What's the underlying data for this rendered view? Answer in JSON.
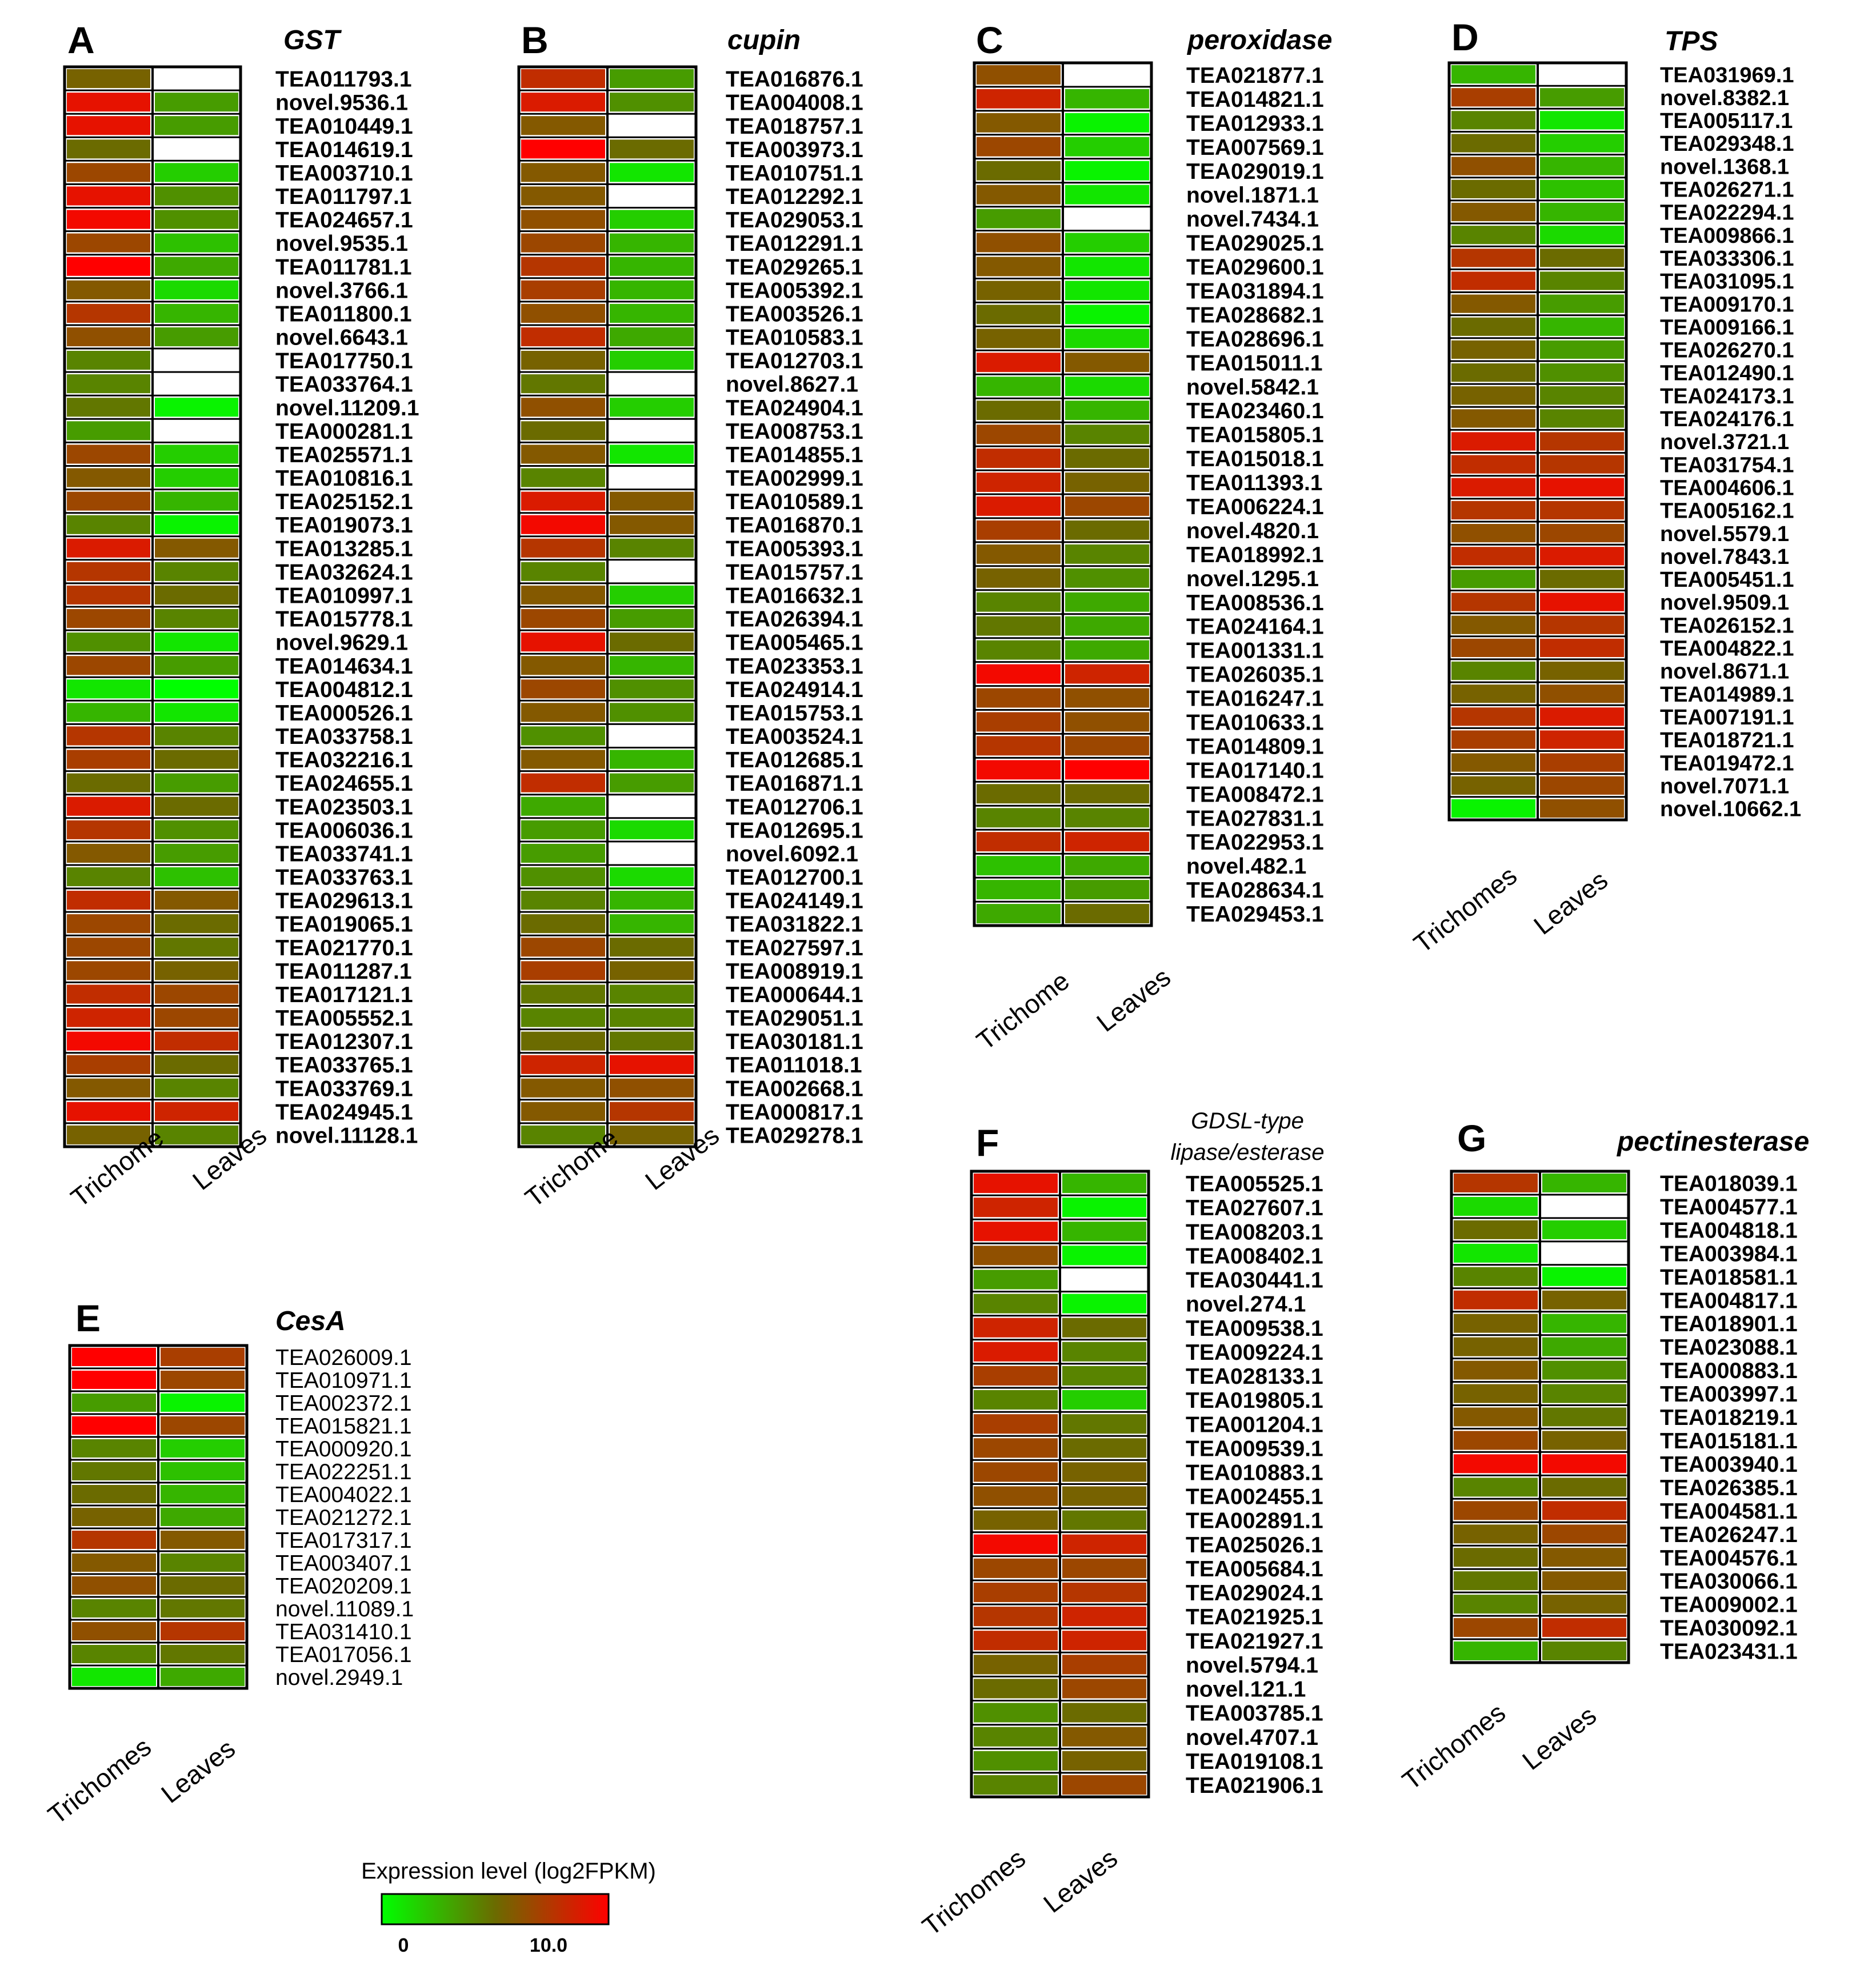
{
  "chart_data": [
    {
      "panel": "A",
      "type": "heatmap",
      "title": "GST",
      "columns": [
        "Trichome",
        "Leaves"
      ],
      "genes": [
        "TEA011793.1",
        "novel.9536.1",
        "TEA010449.1",
        "TEA014619.1",
        "TEA003710.1",
        "TEA011797.1",
        "TEA024657.1",
        "novel.9535.1",
        "TEA011781.1",
        "novel.3766.1",
        "TEA011800.1",
        "novel.6643.1",
        "TEA017750.1",
        "TEA033764.1",
        "novel.11209.1",
        "TEA000281.1",
        "TEA025571.1",
        "TEA010816.1",
        "TEA025152.1",
        "TEA019073.1",
        "TEA013285.1",
        "TEA032624.1",
        "TEA010997.1",
        "TEA015778.1",
        "novel.9629.1",
        "TEA014634.1",
        "TEA004812.1",
        "TEA000526.1",
        "TEA033758.1",
        "TEA032216.1",
        "TEA024655.1",
        "TEA023503.1",
        "TEA006036.1",
        "TEA033741.1",
        "TEA033763.1",
        "TEA029613.1",
        "TEA019065.1",
        "TEA021770.1",
        "TEA011287.1",
        "TEA017121.1",
        "TEA005552.1",
        "TEA012307.1",
        "TEA033765.1",
        "TEA033769.1",
        "TEA024945.1",
        "novel.11128.1"
      ],
      "values": [
        [
          6.5,
          null
        ],
        [
          11,
          4
        ],
        [
          11,
          4
        ],
        [
          6,
          null
        ],
        [
          8,
          2
        ],
        [
          11,
          4.5
        ],
        [
          11.5,
          4.5
        ],
        [
          8,
          2.5
        ],
        [
          12,
          3.5
        ],
        [
          7,
          1.5
        ],
        [
          9,
          3
        ],
        [
          7.5,
          4
        ],
        [
          5,
          null
        ],
        [
          5,
          null
        ],
        [
          5.5,
          0.5
        ],
        [
          4,
          null
        ],
        [
          8,
          2
        ],
        [
          7,
          2
        ],
        [
          8,
          3
        ],
        [
          5,
          0.5
        ],
        [
          10.5,
          7
        ],
        [
          9,
          5
        ],
        [
          9,
          6
        ],
        [
          8,
          5
        ],
        [
          4.5,
          1
        ],
        [
          8,
          4
        ],
        [
          1,
          0
        ],
        [
          3,
          1
        ],
        [
          9,
          5
        ],
        [
          8.5,
          6
        ],
        [
          6,
          4
        ],
        [
          10.5,
          6
        ],
        [
          9,
          4.5
        ],
        [
          7,
          4
        ],
        [
          5,
          2.5
        ],
        [
          9.5,
          7
        ],
        [
          8,
          6
        ],
        [
          8,
          5.5
        ],
        [
          8,
          6.5
        ],
        [
          9.5,
          8
        ],
        [
          10,
          8
        ],
        [
          11.5,
          9.5
        ],
        [
          8.5,
          6
        ],
        [
          7,
          5
        ],
        [
          11,
          10
        ],
        [
          6.5,
          5
        ]
      ]
    },
    {
      "panel": "B",
      "type": "heatmap",
      "title": "cupin",
      "columns": [
        "Trichome",
        "Leaves"
      ],
      "genes": [
        "TEA016876.1",
        "TEA004008.1",
        "TEA018757.1",
        "TEA003973.1",
        "TEA010751.1",
        "TEA012292.1",
        "TEA029053.1",
        "TEA012291.1",
        "TEA029265.1",
        "TEA005392.1",
        "TEA003526.1",
        "TEA010583.1",
        "TEA012703.1",
        "novel.8627.1",
        "TEA024904.1",
        "TEA008753.1",
        "TEA014855.1",
        "TEA002999.1",
        "TEA010589.1",
        "TEA016870.1",
        "TEA005393.1",
        "TEA015757.1",
        "TEA016632.1",
        "TEA026394.1",
        "TEA005465.1",
        "TEA023353.1",
        "TEA024914.1",
        "TEA015753.1",
        "TEA003524.1",
        "TEA012685.1",
        "TEA016871.1",
        "TEA012706.1",
        "TEA012695.1",
        "novel.6092.1",
        "TEA012700.1",
        "TEA024149.1",
        "TEA031822.1",
        "TEA027597.1",
        "TEA008919.1",
        "TEA000644.1",
        "TEA029051.1",
        "TEA030181.1",
        "TEA011018.1",
        "TEA002668.1",
        "TEA000817.1",
        "TEA029278.1"
      ],
      "values": [
        [
          9.5,
          4
        ],
        [
          10.5,
          4.5
        ],
        [
          7,
          null
        ],
        [
          12,
          6
        ],
        [
          7,
          1
        ],
        [
          7,
          null
        ],
        [
          7.5,
          2
        ],
        [
          8,
          3
        ],
        [
          9,
          3
        ],
        [
          8.5,
          3
        ],
        [
          7.5,
          3
        ],
        [
          9.5,
          3.5
        ],
        [
          6.5,
          2
        ],
        [
          5.5,
          null
        ],
        [
          7.5,
          2
        ],
        [
          6,
          null
        ],
        [
          7,
          1
        ],
        [
          5,
          null
        ],
        [
          10.5,
          7
        ],
        [
          11.5,
          7
        ],
        [
          9,
          5
        ],
        [
          5,
          null
        ],
        [
          7,
          2
        ],
        [
          8,
          4
        ],
        [
          11,
          6
        ],
        [
          7,
          3
        ],
        [
          8,
          4.5
        ],
        [
          7,
          4.5
        ],
        [
          4.5,
          null
        ],
        [
          7,
          3
        ],
        [
          9.5,
          4
        ],
        [
          3.5,
          null
        ],
        [
          4,
          1.5
        ],
        [
          4,
          null
        ],
        [
          4.5,
          1.5
        ],
        [
          5,
          3
        ],
        [
          6,
          3
        ],
        [
          8,
          6
        ],
        [
          8.5,
          6.5
        ],
        [
          5.5,
          5
        ],
        [
          5,
          5
        ],
        [
          6,
          5.5
        ],
        [
          10,
          11
        ],
        [
          7,
          7.5
        ],
        [
          7,
          9
        ],
        [
          5,
          6.5
        ]
      ]
    },
    {
      "panel": "C",
      "type": "heatmap",
      "title": "peroxidase",
      "columns": [
        "Trichome",
        "Leaves"
      ],
      "genes": [
        "TEA021877.1",
        "TEA014821.1",
        "TEA012933.1",
        "TEA007569.1",
        "TEA029019.1",
        "novel.1871.1",
        "novel.7434.1",
        "TEA029025.1",
        "TEA029600.1",
        "TEA031894.1",
        "TEA028682.1",
        "TEA028696.1",
        "TEA015011.1",
        "novel.5842.1",
        "TEA023460.1",
        "TEA015805.1",
        "TEA015018.1",
        "TEA011393.1",
        "TEA006224.1",
        "novel.4820.1",
        "TEA018992.1",
        "novel.1295.1",
        "TEA008536.1",
        "TEA024164.1",
        "TEA001331.1",
        "TEA026035.1",
        "TEA016247.1",
        "TEA010633.1",
        "TEA014809.1",
        "TEA017140.1",
        "TEA008472.1",
        "TEA027831.1",
        "TEA022953.1",
        "novel.482.1",
        "TEA028634.1",
        "TEA029453.1"
      ],
      "values": [
        [
          7.5,
          null
        ],
        [
          10,
          3
        ],
        [
          7,
          0.5
        ],
        [
          8,
          2
        ],
        [
          6,
          0.5
        ],
        [
          7,
          1
        ],
        [
          4,
          null
        ],
        [
          7.5,
          2
        ],
        [
          7,
          1
        ],
        [
          6.5,
          1
        ],
        [
          6,
          0.5
        ],
        [
          6.5,
          1.5
        ],
        [
          10.5,
          7
        ],
        [
          3,
          1.5
        ],
        [
          6,
          3
        ],
        [
          8,
          5
        ],
        [
          9.5,
          6
        ],
        [
          10,
          6.5
        ],
        [
          10.5,
          8
        ],
        [
          8.5,
          6
        ],
        [
          7,
          5
        ],
        [
          6.5,
          4.5
        ],
        [
          5,
          3.5
        ],
        [
          5.5,
          3.5
        ],
        [
          5,
          3.5
        ],
        [
          11.5,
          10
        ],
        [
          8,
          7.5
        ],
        [
          8.5,
          7.5
        ],
        [
          9,
          8
        ],
        [
          11.5,
          12
        ],
        [
          6,
          6
        ],
        [
          5,
          5
        ],
        [
          9.5,
          10
        ],
        [
          2.5,
          3.5
        ],
        [
          3,
          4
        ],
        [
          3.5,
          6
        ]
      ]
    },
    {
      "panel": "D",
      "type": "heatmap",
      "title": "TPS",
      "columns": [
        "Trichomes",
        "Leaves"
      ],
      "genes": [
        "TEA031969.1",
        "novel.8382.1",
        "TEA005117.1",
        "TEA029348.1",
        "novel.1368.1",
        "TEA026271.1",
        "TEA022294.1",
        "TEA009866.1",
        "TEA033306.1",
        "TEA031095.1",
        "TEA009170.1",
        "TEA009166.1",
        "TEA026270.1",
        "TEA012490.1",
        "TEA024173.1",
        "TEA024176.1",
        "novel.3721.1",
        "TEA031754.1",
        "TEA004606.1",
        "TEA005162.1",
        "novel.5579.1",
        "novel.7843.1",
        "TEA005451.1",
        "novel.9509.1",
        "TEA026152.1",
        "TEA004822.1",
        "novel.8671.1",
        "TEA014989.1",
        "TEA007191.1",
        "TEA018721.1",
        "TEA019472.1",
        "novel.7071.1",
        "novel.10662.1"
      ],
      "values": [
        [
          3,
          null
        ],
        [
          8.5,
          4
        ],
        [
          5,
          1
        ],
        [
          6,
          2
        ],
        [
          7.5,
          3
        ],
        [
          6,
          2.5
        ],
        [
          7,
          3
        ],
        [
          5,
          1.5
        ],
        [
          9,
          6
        ],
        [
          9.5,
          5
        ],
        [
          7,
          4
        ],
        [
          6,
          3
        ],
        [
          6.5,
          4
        ],
        [
          6,
          4.5
        ],
        [
          6.5,
          5
        ],
        [
          7,
          5
        ],
        [
          10.5,
          9
        ],
        [
          9.5,
          9
        ],
        [
          10.5,
          11
        ],
        [
          9,
          9
        ],
        [
          7.5,
          8
        ],
        [
          9.5,
          10.5
        ],
        [
          4,
          6
        ],
        [
          9,
          11
        ],
        [
          7,
          9
        ],
        [
          8,
          9.5
        ],
        [
          5,
          6.5
        ],
        [
          6.5,
          7.5
        ],
        [
          9,
          10.5
        ],
        [
          8.5,
          10
        ],
        [
          7,
          8.5
        ],
        [
          6.5,
          8
        ],
        [
          0.5,
          7.5
        ]
      ]
    },
    {
      "panel": "E",
      "type": "heatmap",
      "title": "CesA",
      "columns": [
        "Trichomes",
        "Leaves"
      ],
      "genes": [
        "TEA026009.1",
        "TEA010971.1",
        "TEA002372.1",
        "TEA015821.1",
        "TEA000920.1",
        "TEA022251.1",
        "TEA004022.1",
        "TEA021272.1",
        "TEA017317.1",
        "TEA003407.1",
        "TEA020209.1",
        "novel.11089.1",
        "TEA031410.1",
        "TEA017056.1",
        "novel.2949.1"
      ],
      "values": [
        [
          12,
          8.5
        ],
        [
          12,
          8
        ],
        [
          4,
          0.5
        ],
        [
          12,
          8
        ],
        [
          5,
          2
        ],
        [
          5.5,
          2.5
        ],
        [
          6,
          3
        ],
        [
          6.5,
          3.5
        ],
        [
          9,
          7
        ],
        [
          7,
          5
        ],
        [
          7.5,
          6
        ],
        [
          5,
          5.5
        ],
        [
          7.5,
          9
        ],
        [
          5,
          5.5
        ],
        [
          1,
          3.5
        ]
      ]
    },
    {
      "panel": "F",
      "type": "heatmap",
      "title": "GDSL-type lipase/esterase",
      "columns": [
        "Trichomes",
        "Leaves"
      ],
      "genes": [
        "TEA005525.1",
        "TEA027607.1",
        "TEA008203.1",
        "TEA008402.1",
        "TEA030441.1",
        "novel.274.1",
        "TEA009538.1",
        "TEA009224.1",
        "TEA028133.1",
        "TEA019805.1",
        "TEA001204.1",
        "TEA009539.1",
        "TEA010883.1",
        "TEA002455.1",
        "TEA002891.1",
        "TEA025026.1",
        "TEA005684.1",
        "TEA029024.1",
        "TEA021925.1",
        "TEA021927.1",
        "novel.5794.1",
        "novel.121.1",
        "TEA003785.1",
        "novel.4707.1",
        "TEA019108.1",
        "TEA021906.1"
      ],
      "values": [
        [
          11,
          3
        ],
        [
          10,
          0.5
        ],
        [
          11,
          3
        ],
        [
          7.5,
          0.5
        ],
        [
          4,
          null
        ],
        [
          5,
          0.5
        ],
        [
          10,
          6
        ],
        [
          10.5,
          5
        ],
        [
          8.5,
          5
        ],
        [
          5,
          2
        ],
        [
          8.5,
          5.5
        ],
        [
          8,
          6
        ],
        [
          8,
          6.5
        ],
        [
          7.5,
          6.5
        ],
        [
          6.5,
          5.5
        ],
        [
          11.5,
          10
        ],
        [
          8,
          8
        ],
        [
          8.5,
          9
        ],
        [
          9,
          10
        ],
        [
          9.5,
          10
        ],
        [
          6.5,
          8.5
        ],
        [
          6,
          8
        ],
        [
          4.5,
          6
        ],
        [
          5,
          7
        ],
        [
          4.5,
          6.5
        ],
        [
          5,
          8
        ]
      ]
    },
    {
      "panel": "G",
      "type": "heatmap",
      "title": "pectinesterase",
      "columns": [
        "Trichomes",
        "Leaves"
      ],
      "genes": [
        "TEA018039.1",
        "TEA004577.1",
        "TEA004818.1",
        "TEA003984.1",
        "TEA018581.1",
        "TEA004817.1",
        "TEA018901.1",
        "TEA023088.1",
        "TEA000883.1",
        "TEA003997.1",
        "TEA018219.1",
        "TEA015181.1",
        "TEA003940.1",
        "TEA026385.1",
        "TEA004581.1",
        "TEA026247.1",
        "TEA004576.1",
        "TEA030066.1",
        "TEA009002.1",
        "TEA030092.1",
        "TEA023431.1"
      ],
      "values": [
        [
          9,
          3
        ],
        [
          1.5,
          null
        ],
        [
          6,
          2
        ],
        [
          1,
          null
        ],
        [
          5,
          0.5
        ],
        [
          9.5,
          6.5
        ],
        [
          6.5,
          3
        ],
        [
          6.5,
          3.5
        ],
        [
          7,
          4.5
        ],
        [
          6.5,
          5
        ],
        [
          7,
          5.5
        ],
        [
          8,
          6.5
        ],
        [
          11.5,
          11.5
        ],
        [
          5,
          6
        ],
        [
          8,
          9.5
        ],
        [
          6.5,
          8
        ],
        [
          6,
          7
        ],
        [
          5.5,
          7
        ],
        [
          5,
          6.5
        ],
        [
          8,
          9.5
        ],
        [
          3,
          5
        ]
      ]
    }
  ],
  "legend": {
    "title": "Expression level (log2FPKM)",
    "min_label": "0",
    "max_label": "10.0",
    "range": [
      0,
      12
    ],
    "colors": [
      "#00ff00",
      "#6b6b00",
      "#ff0000"
    ],
    "missing_color": "#ffffff"
  }
}
